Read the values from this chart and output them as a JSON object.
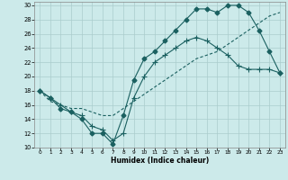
{
  "xlabel": "Humidex (Indice chaleur)",
  "bg_color": "#cceaea",
  "grid_color": "#aacccc",
  "line_color": "#1a6060",
  "xlim": [
    -0.5,
    23.5
  ],
  "ylim": [
    10,
    30.5
  ],
  "xticks": [
    0,
    1,
    2,
    3,
    4,
    5,
    6,
    7,
    8,
    9,
    10,
    11,
    12,
    13,
    14,
    15,
    16,
    17,
    18,
    19,
    20,
    21,
    22,
    23
  ],
  "yticks": [
    10,
    12,
    14,
    16,
    18,
    20,
    22,
    24,
    26,
    28,
    30
  ],
  "line1_x": [
    0,
    1,
    2,
    3,
    4,
    5,
    6,
    7,
    8,
    9,
    10,
    11,
    12,
    13,
    14,
    15,
    16,
    17,
    18,
    19,
    20,
    21,
    22,
    23
  ],
  "line1_y": [
    18,
    17,
    15.5,
    15,
    14,
    12,
    12,
    10.5,
    14.5,
    19.5,
    22.5,
    23.5,
    25,
    26.5,
    28,
    29.5,
    29.5,
    29,
    30,
    30,
    29,
    26.5,
    23.5,
    20.5
  ],
  "line2_x": [
    0,
    1,
    2,
    3,
    4,
    5,
    6,
    7,
    8,
    9,
    10,
    11,
    12,
    13,
    14,
    15,
    16,
    17,
    18,
    19,
    20,
    21,
    22,
    23
  ],
  "line2_y": [
    18,
    17,
    16,
    15,
    14.5,
    13,
    12.5,
    11,
    12,
    17,
    20,
    22,
    23,
    24,
    25,
    25.5,
    25,
    24,
    23,
    21.5,
    21,
    21,
    21,
    20.5
  ],
  "line3_x": [
    0,
    1,
    2,
    3,
    4,
    5,
    6,
    7,
    8,
    9,
    10,
    11,
    12,
    13,
    14,
    15,
    16,
    17,
    18,
    19,
    20,
    21,
    22,
    23
  ],
  "line3_y": [
    18,
    16.5,
    16,
    15.5,
    15.5,
    15,
    14.5,
    14.5,
    15.5,
    16.5,
    17.5,
    18.5,
    19.5,
    20.5,
    21.5,
    22.5,
    23,
    23.5,
    24.5,
    25.5,
    26.5,
    27.5,
    28.5,
    29
  ]
}
